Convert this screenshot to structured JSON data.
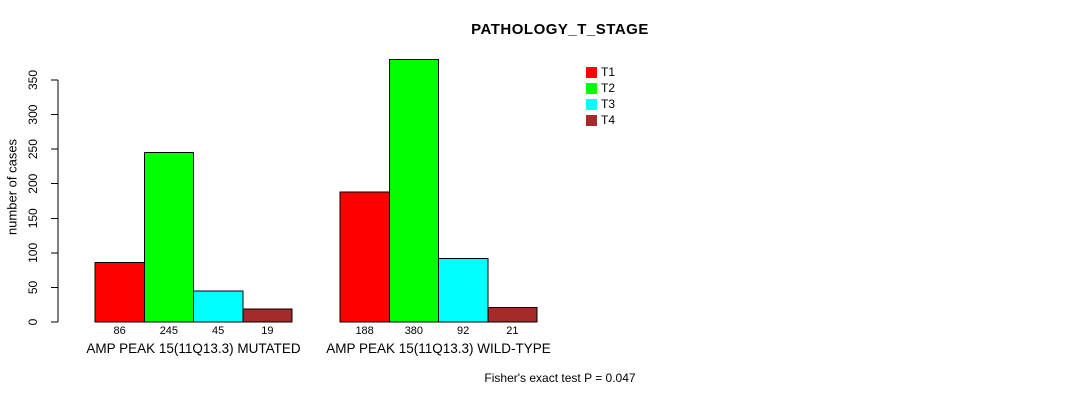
{
  "chart_data": {
    "type": "bar",
    "title": "PATHOLOGY_T_STAGE",
    "ylabel": "number of cases",
    "xlabel": "",
    "ylim": [
      0,
      380
    ],
    "yticks": [
      0,
      50,
      100,
      150,
      200,
      250,
      300,
      350
    ],
    "grid": false,
    "categories": [
      "T1",
      "T2",
      "T3",
      "T4"
    ],
    "series_colors": {
      "T1": "#ff0000",
      "T2": "#00ff00",
      "T3": "#00ffff",
      "T4": "#a52a2a"
    },
    "groups": [
      {
        "label": "AMP PEAK 15(11Q13.3) MUTATED",
        "values": [
          86,
          245,
          45,
          19
        ]
      },
      {
        "label": "AMP PEAK 15(11Q13.3) WILD-TYPE",
        "values": [
          188,
          380,
          92,
          21
        ]
      }
    ],
    "legend": {
      "position": "top-right",
      "entries": [
        {
          "label": "T1",
          "color": "#ff0000"
        },
        {
          "label": "T2",
          "color": "#00ff00"
        },
        {
          "label": "T3",
          "color": "#00ffff"
        },
        {
          "label": "T4",
          "color": "#a52a2a"
        }
      ]
    },
    "footnote": "Fisher's exact test P = 0.047"
  }
}
